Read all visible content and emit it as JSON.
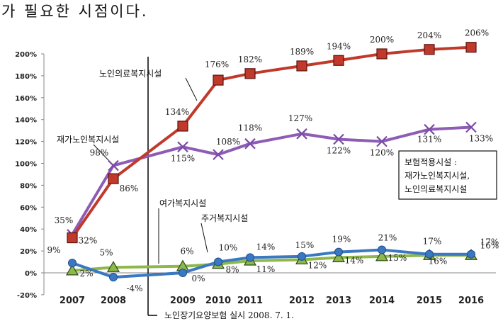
{
  "header_text": "가 필요한 시점이다.",
  "chart_data": {
    "type": "line",
    "x": [
      "2007",
      "2008",
      "2009",
      "2010",
      "2011",
      "2012",
      "2013",
      "2014",
      "2015",
      "2016"
    ],
    "y_ticks": [
      "200%",
      "180%",
      "160%",
      "140%",
      "120%",
      "100%",
      "80%",
      "60%",
      "40%",
      "20%",
      "0%",
      "-20%"
    ],
    "ylim": [
      -20,
      200
    ],
    "grid": false,
    "series": [
      {
        "name": "노인의료복지시설",
        "color": "#c0392b",
        "marker": "square",
        "values": [
          32,
          86,
          134,
          176,
          182,
          189,
          194,
          200,
          204,
          206
        ],
        "labels": [
          "32%",
          "86%",
          "134%",
          "176%",
          "182%",
          "189%",
          "194%",
          "200%",
          "204%",
          "206%"
        ]
      },
      {
        "name": "재가노인복지시설",
        "color": "#8e5bb5",
        "marker": "x",
        "values": [
          35,
          98,
          115,
          108,
          118,
          127,
          122,
          120,
          131,
          133
        ],
        "labels": [
          "35%",
          "98%",
          "115%",
          "108%",
          "118%",
          "127%",
          "122%",
          "120%",
          "131%",
          "133%"
        ]
      },
      {
        "name": "여가복지시설",
        "color": "#3a78c2",
        "marker": "circle",
        "values": [
          9,
          -4,
          0,
          10,
          14,
          15,
          19,
          21,
          17,
          17
        ],
        "labels": [
          "9%",
          "-4%",
          "0%",
          "10%",
          "14%",
          "15%",
          "19%",
          "21%",
          "17%",
          "17%"
        ]
      },
      {
        "name": "주거복지시설",
        "color": "#8db84a",
        "marker": "triangle",
        "values": [
          2,
          5,
          6,
          8,
          11,
          12,
          14,
          15,
          16,
          16
        ],
        "labels": [
          "2%",
          "5%",
          "6%",
          "8%",
          "11%",
          "12%",
          "14%",
          "15%",
          "16%",
          "16%"
        ]
      }
    ],
    "annotations": {
      "policy_marker": "노인장기요양보험 실시 2008. 7. 1.",
      "legend_box": [
        "보험적용시설 :",
        "재가노인복지시설,",
        "노인의료복지시설"
      ]
    }
  }
}
